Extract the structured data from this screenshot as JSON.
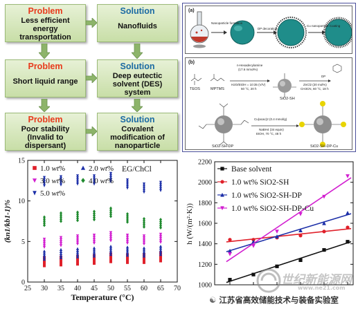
{
  "flowchart": {
    "rows": [
      {
        "problem_head": "Problem",
        "problem_text": [
          "Less efficient",
          "energy",
          "transportation"
        ],
        "solution_head": "Solution",
        "solution_text": [
          "Nanofluids"
        ]
      },
      {
        "problem_head": "Problem",
        "problem_text": [
          "Short liquid range"
        ],
        "solution_head": "Solution",
        "solution_text": [
          "Deep eutectic",
          "solvent (DES)",
          "system"
        ]
      },
      {
        "problem_head": "Problem",
        "problem_text": [
          "Poor stability",
          "(Invalid to",
          "dispersant)"
        ],
        "solution_head": "Solution",
        "solution_text": [
          "Covalent",
          "modification of",
          "nanoparticle"
        ]
      }
    ]
  },
  "schematic": {
    "panel_a": {
      "label": "(a)",
      "steps": [
        "Nanoparticle formation",
        "DP decoration",
        "Cu nanoparticle Coating"
      ]
    },
    "panel_b": {
      "label": "(b)",
      "reagent1": [
        "n-Hexadecylamine",
        "(17.6 mmol%)",
        "H2O/EtOH = 10:35 (V/V)",
        "50 °C, 20 h"
      ],
      "reagent2": [
        "DP",
        "ZnCl2 (20 mol%)",
        "CH3CN, 60 °C, 18 h"
      ],
      "reagent3": [
        "Cu(acac)2 (0.4 mmol/g)",
        "NaBH4 (34 equiv)",
        "EtOH, 70 °C, 48 h"
      ],
      "labels": [
        "TEOS",
        "MPTMS",
        "SiO2-SH",
        "SiO2-SH-DP",
        "SiO2-SH-DP-Cu"
      ]
    }
  },
  "scatter_chart": {
    "chart_data": {
      "type": "scatter",
      "title": "EG/ChCl",
      "xlabel": "Temperature (°C)",
      "ylabel": "(kn1/kb1-1)%",
      "xlim": [
        25,
        70
      ],
      "ylim": [
        0,
        15
      ],
      "xticks": [
        25,
        30,
        35,
        40,
        45,
        50,
        55,
        60,
        65,
        70
      ],
      "yticks": [
        0,
        5,
        10,
        15
      ],
      "x_values": [
        30,
        35,
        40,
        45,
        50,
        55,
        60,
        65
      ],
      "series": [
        {
          "name": "1.0 wt%",
          "color": "#e0202a",
          "marker": "square",
          "values": [
            2.5,
            2.6,
            2.7,
            2.8,
            3.0,
            2.9,
            2.9,
            3.1
          ]
        },
        {
          "name": "2.0 wt%",
          "color": "#1c2fa8",
          "marker": "triangle",
          "values": [
            3.3,
            3.5,
            3.6,
            3.7,
            3.9,
            3.8,
            3.7,
            3.9
          ]
        },
        {
          "name": "3.0 wt%",
          "color": "#d21fd0",
          "marker": "triangle-down",
          "values": [
            4.8,
            5.0,
            5.2,
            5.3,
            5.6,
            5.3,
            5.2,
            5.4
          ]
        },
        {
          "name": "4.0 wt%",
          "color": "#1f8a2e",
          "marker": "diamond",
          "values": [
            7.5,
            8.0,
            8.1,
            8.2,
            8.6,
            7.9,
            7.3,
            7.2
          ]
        },
        {
          "name": "5.0 wt%",
          "color": "#1c2fa8",
          "marker": "star",
          "values": [
            12.4,
            12.5,
            12.6,
            12.6,
            12.9,
            12.1,
            11.6,
            11.8
          ]
        }
      ]
    },
    "legend": [
      {
        "num": "1.0 ",
        "unit": "wt",
        "pct": "%"
      },
      {
        "num": "2.0 ",
        "unit": "wt",
        "pct": "%"
      },
      {
        "num": "3.0 ",
        "unit": "wt",
        "pct": "%"
      },
      {
        "num": "4.0 ",
        "unit": "wt",
        "pct": "%"
      },
      {
        "num": "5.0 ",
        "unit": "wt",
        "pct": "%"
      }
    ]
  },
  "line_chart": {
    "chart_data": {
      "type": "line",
      "xlabel": "",
      "ylabel": "h (W/(m²·K))",
      "ylim": [
        1000,
        2200
      ],
      "yticks": [
        1000,
        1200,
        1400,
        1600,
        1800,
        2000,
        2200
      ],
      "x": [
        1,
        2,
        3,
        4,
        5,
        6
      ],
      "series": [
        {
          "name": "Base solvent",
          "color": "#111111",
          "marker": "square",
          "values": [
            1050,
            1100,
            1180,
            1240,
            1340,
            1420
          ]
        },
        {
          "name": "1.0 wt% SiO2-SH",
          "color": "#e0202a",
          "marker": "circle",
          "values": [
            1440,
            1440,
            1460,
            1480,
            1520,
            1560
          ]
        },
        {
          "name": "1.0 wt% SiO2-SH-DP",
          "color": "#1c2fa8",
          "marker": "triangle",
          "values": [
            1330,
            1420,
            1470,
            1530,
            1600,
            1700
          ]
        },
        {
          "name": "1.0 wt% SiO2-SH-DP-Cu",
          "color": "#d21fd0",
          "marker": "triangle-down",
          "values": [
            1300,
            1380,
            1520,
            1690,
            1860,
            2060
          ]
        }
      ]
    },
    "legend": [
      "Base solvent",
      "1.0 wt% SiO2-SH",
      "1.0 wt% SiO2-SH-DP",
      "1.0 wt% SiO2-SH-DP-Cu"
    ]
  },
  "watermark": {
    "text1": "世纪新能源网",
    "text2": "江苏省高效储能技术与装备实验室",
    "url": "www.ne21.com"
  }
}
